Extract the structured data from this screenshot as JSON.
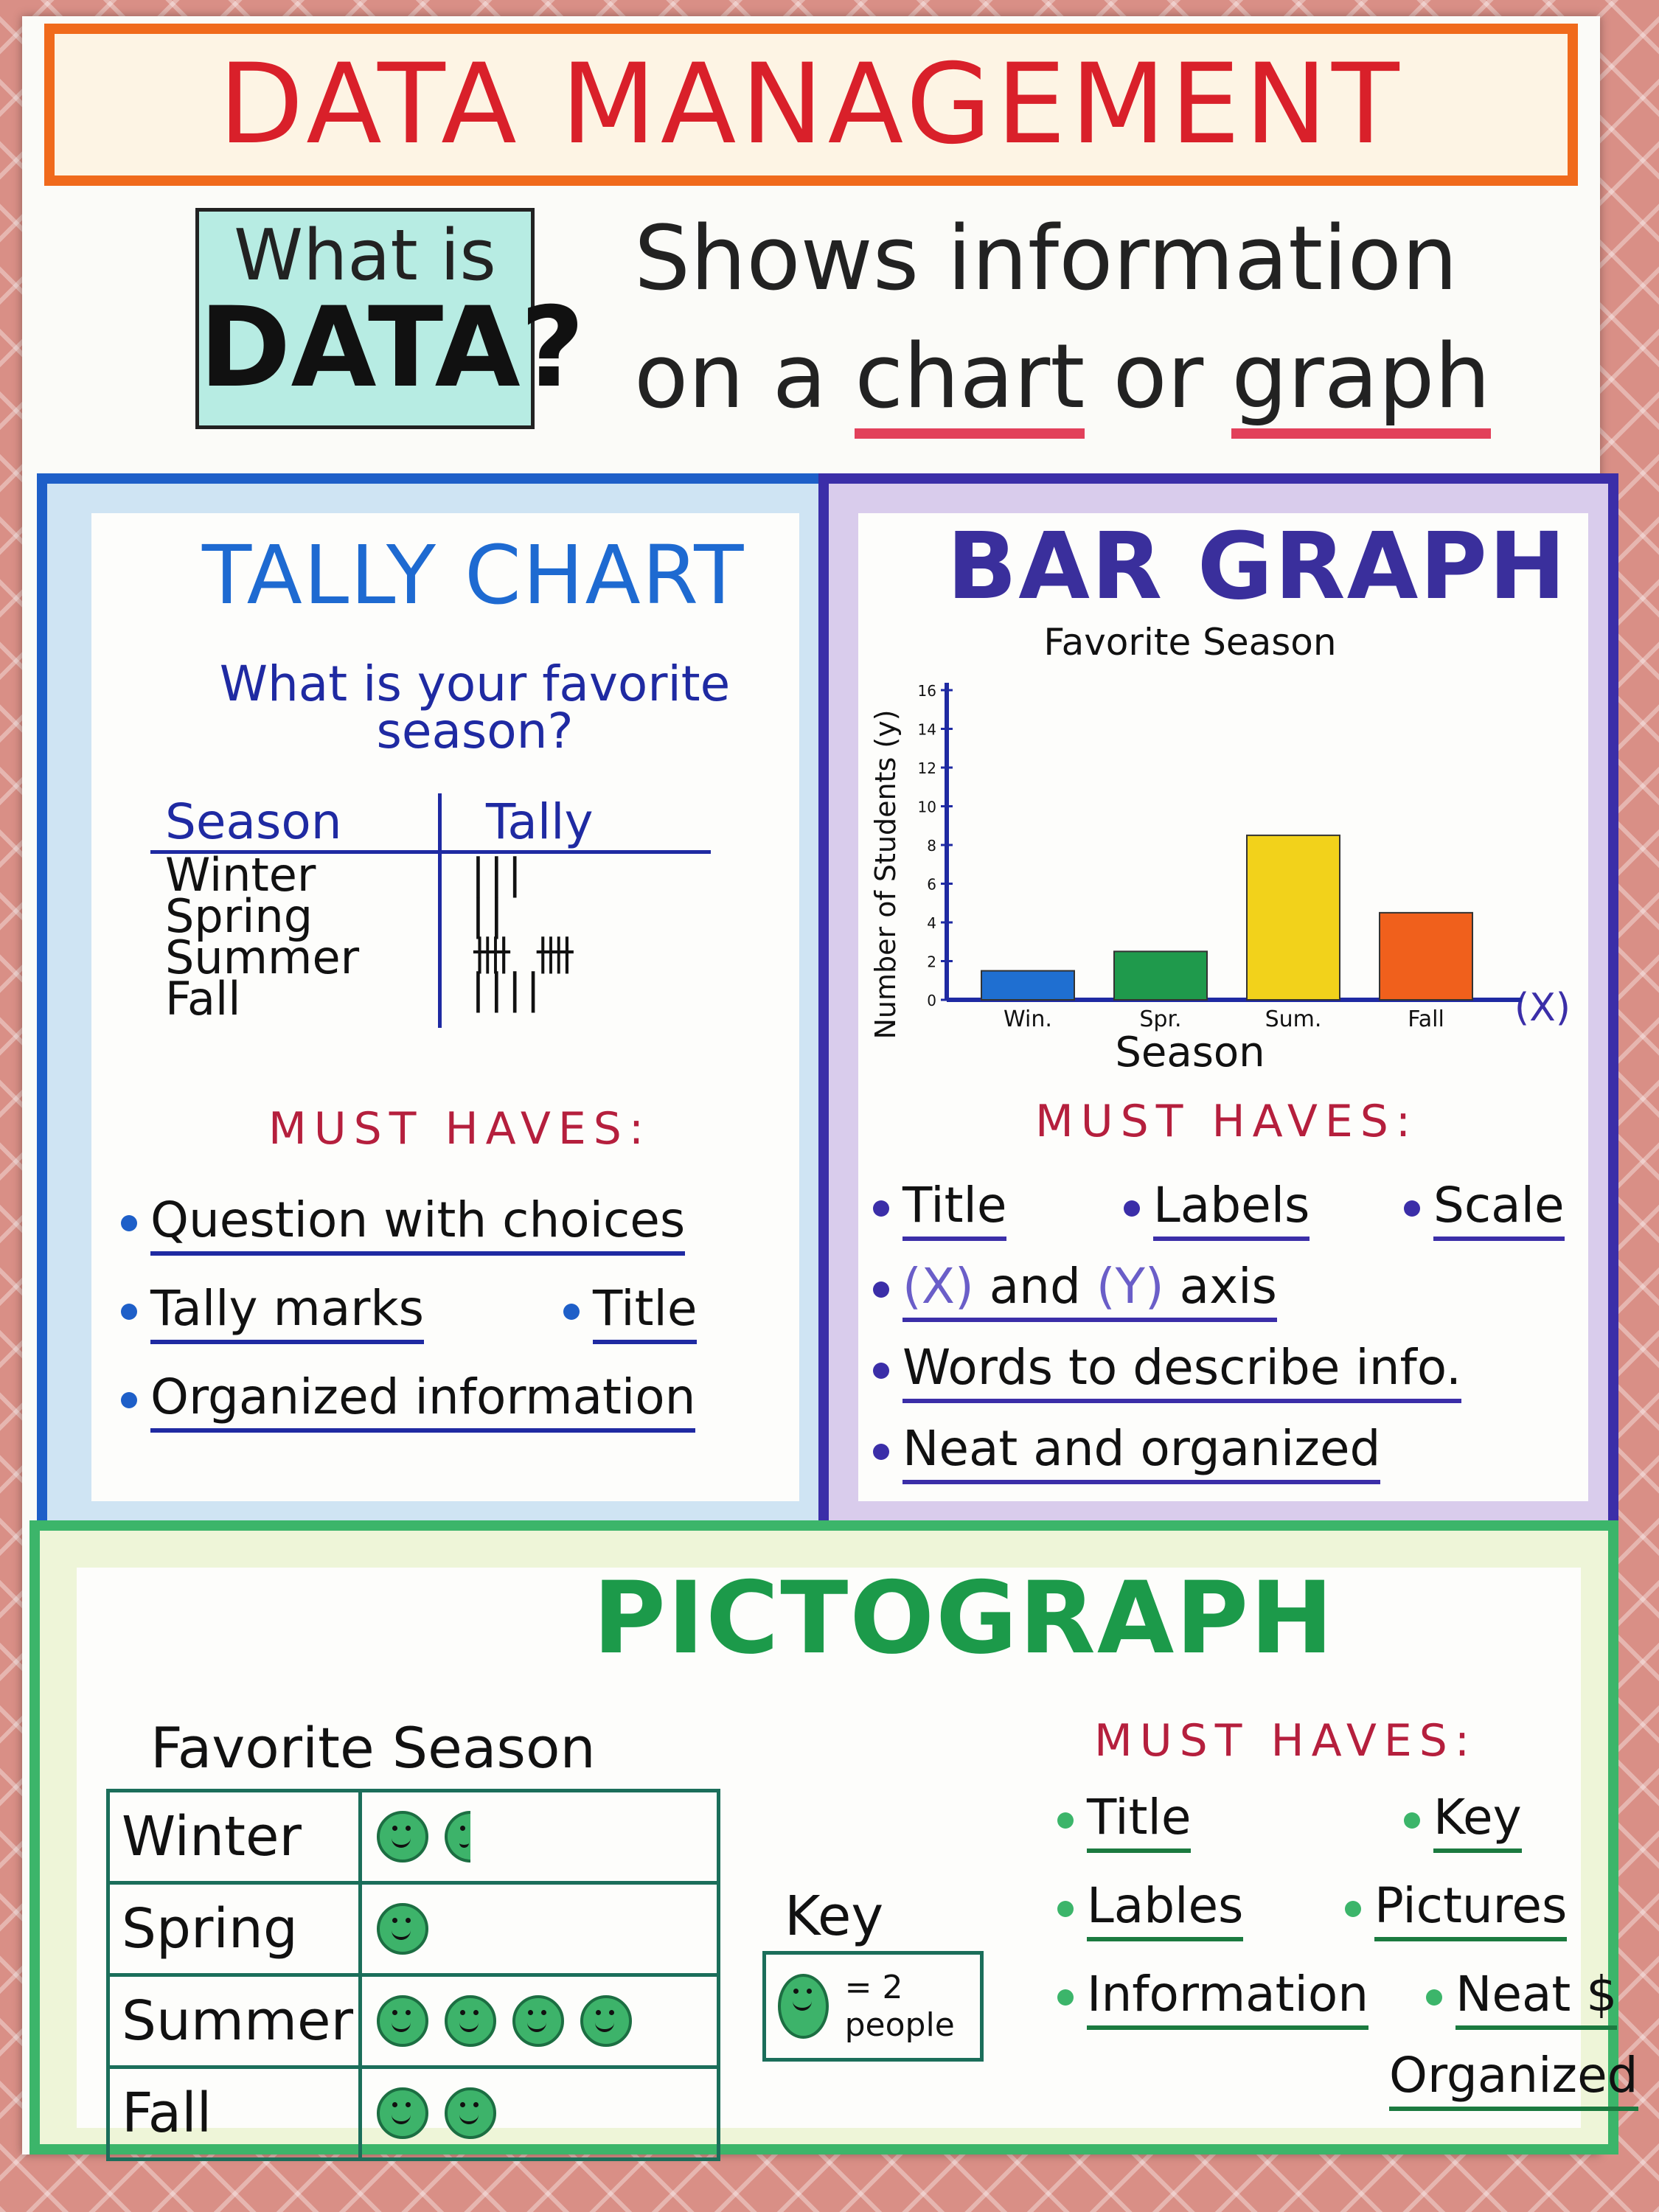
{
  "title": "DATA MANAGEMENT",
  "what_is": {
    "line1": "What is",
    "line2": "DATA?"
  },
  "definition": {
    "line1": "Shows information",
    "line2_pre": "on a ",
    "chart": "chart",
    "or": " or ",
    "graph": "graph"
  },
  "tally": {
    "title": "TALLY CHART",
    "question": "What is your favorite season?",
    "headers": [
      "Season",
      "Tally"
    ],
    "rows": [
      {
        "season": "Winter",
        "tally": "|||"
      },
      {
        "season": "Spring",
        "tally": "||"
      },
      {
        "season": "Summer",
        "tally": "卌 卌"
      },
      {
        "season": "Fall",
        "tally": "||||"
      }
    ],
    "must_haves_label": "MUST HAVES:",
    "must_haves": [
      "Question with choices",
      "Tally marks",
      "Title",
      "Organized information"
    ],
    "accent": "#1e5fc8"
  },
  "bar": {
    "title": "BAR GRAPH",
    "must_haves_label": "MUST HAVES:",
    "must_haves": {
      "title": "Title",
      "labels": "Labels",
      "scale": "Scale",
      "x": "(X)",
      "and": " and ",
      "y": "(Y)",
      "axis": " axis",
      "words": "Words to describe info.",
      "neat": "Neat and organized"
    },
    "accent": "#3b2ea8"
  },
  "chart_data": {
    "type": "bar",
    "title": "Favorite Season",
    "categories": [
      "Win.",
      "Spr.",
      "Sum.",
      "Fall"
    ],
    "values": [
      1.5,
      2.5,
      8.5,
      4.5
    ],
    "colors": [
      "#1f6fd1",
      "#1f9a4c",
      "#f2d21b",
      "#f0601c"
    ],
    "xlabel": "Season",
    "ylabel": "Number of Students (y)",
    "x_axis_marker": "(X)",
    "ylim": [
      0,
      16
    ],
    "yticks": [
      0,
      2,
      4,
      6,
      8,
      10,
      12,
      14,
      16
    ],
    "grid": false
  },
  "picto": {
    "title": "PICTOGRAPH",
    "subtitle": "Favorite Season",
    "rows": [
      {
        "season": "Winter",
        "faces": 1.5
      },
      {
        "season": "Spring",
        "faces": 1
      },
      {
        "season": "Summer",
        "faces": 4
      },
      {
        "season": "Fall",
        "faces": 2
      }
    ],
    "key_label": "Key",
    "key_text": "= 2 people",
    "must_haves_label": "MUST HAVES:",
    "must_haves": {
      "title": "Title",
      "key": "Key",
      "lables": "Lables",
      "pictures": "Pictures",
      "information": "Information",
      "neat": "Neat $",
      "organized": "Organized"
    },
    "accent": "#3cb56a"
  }
}
